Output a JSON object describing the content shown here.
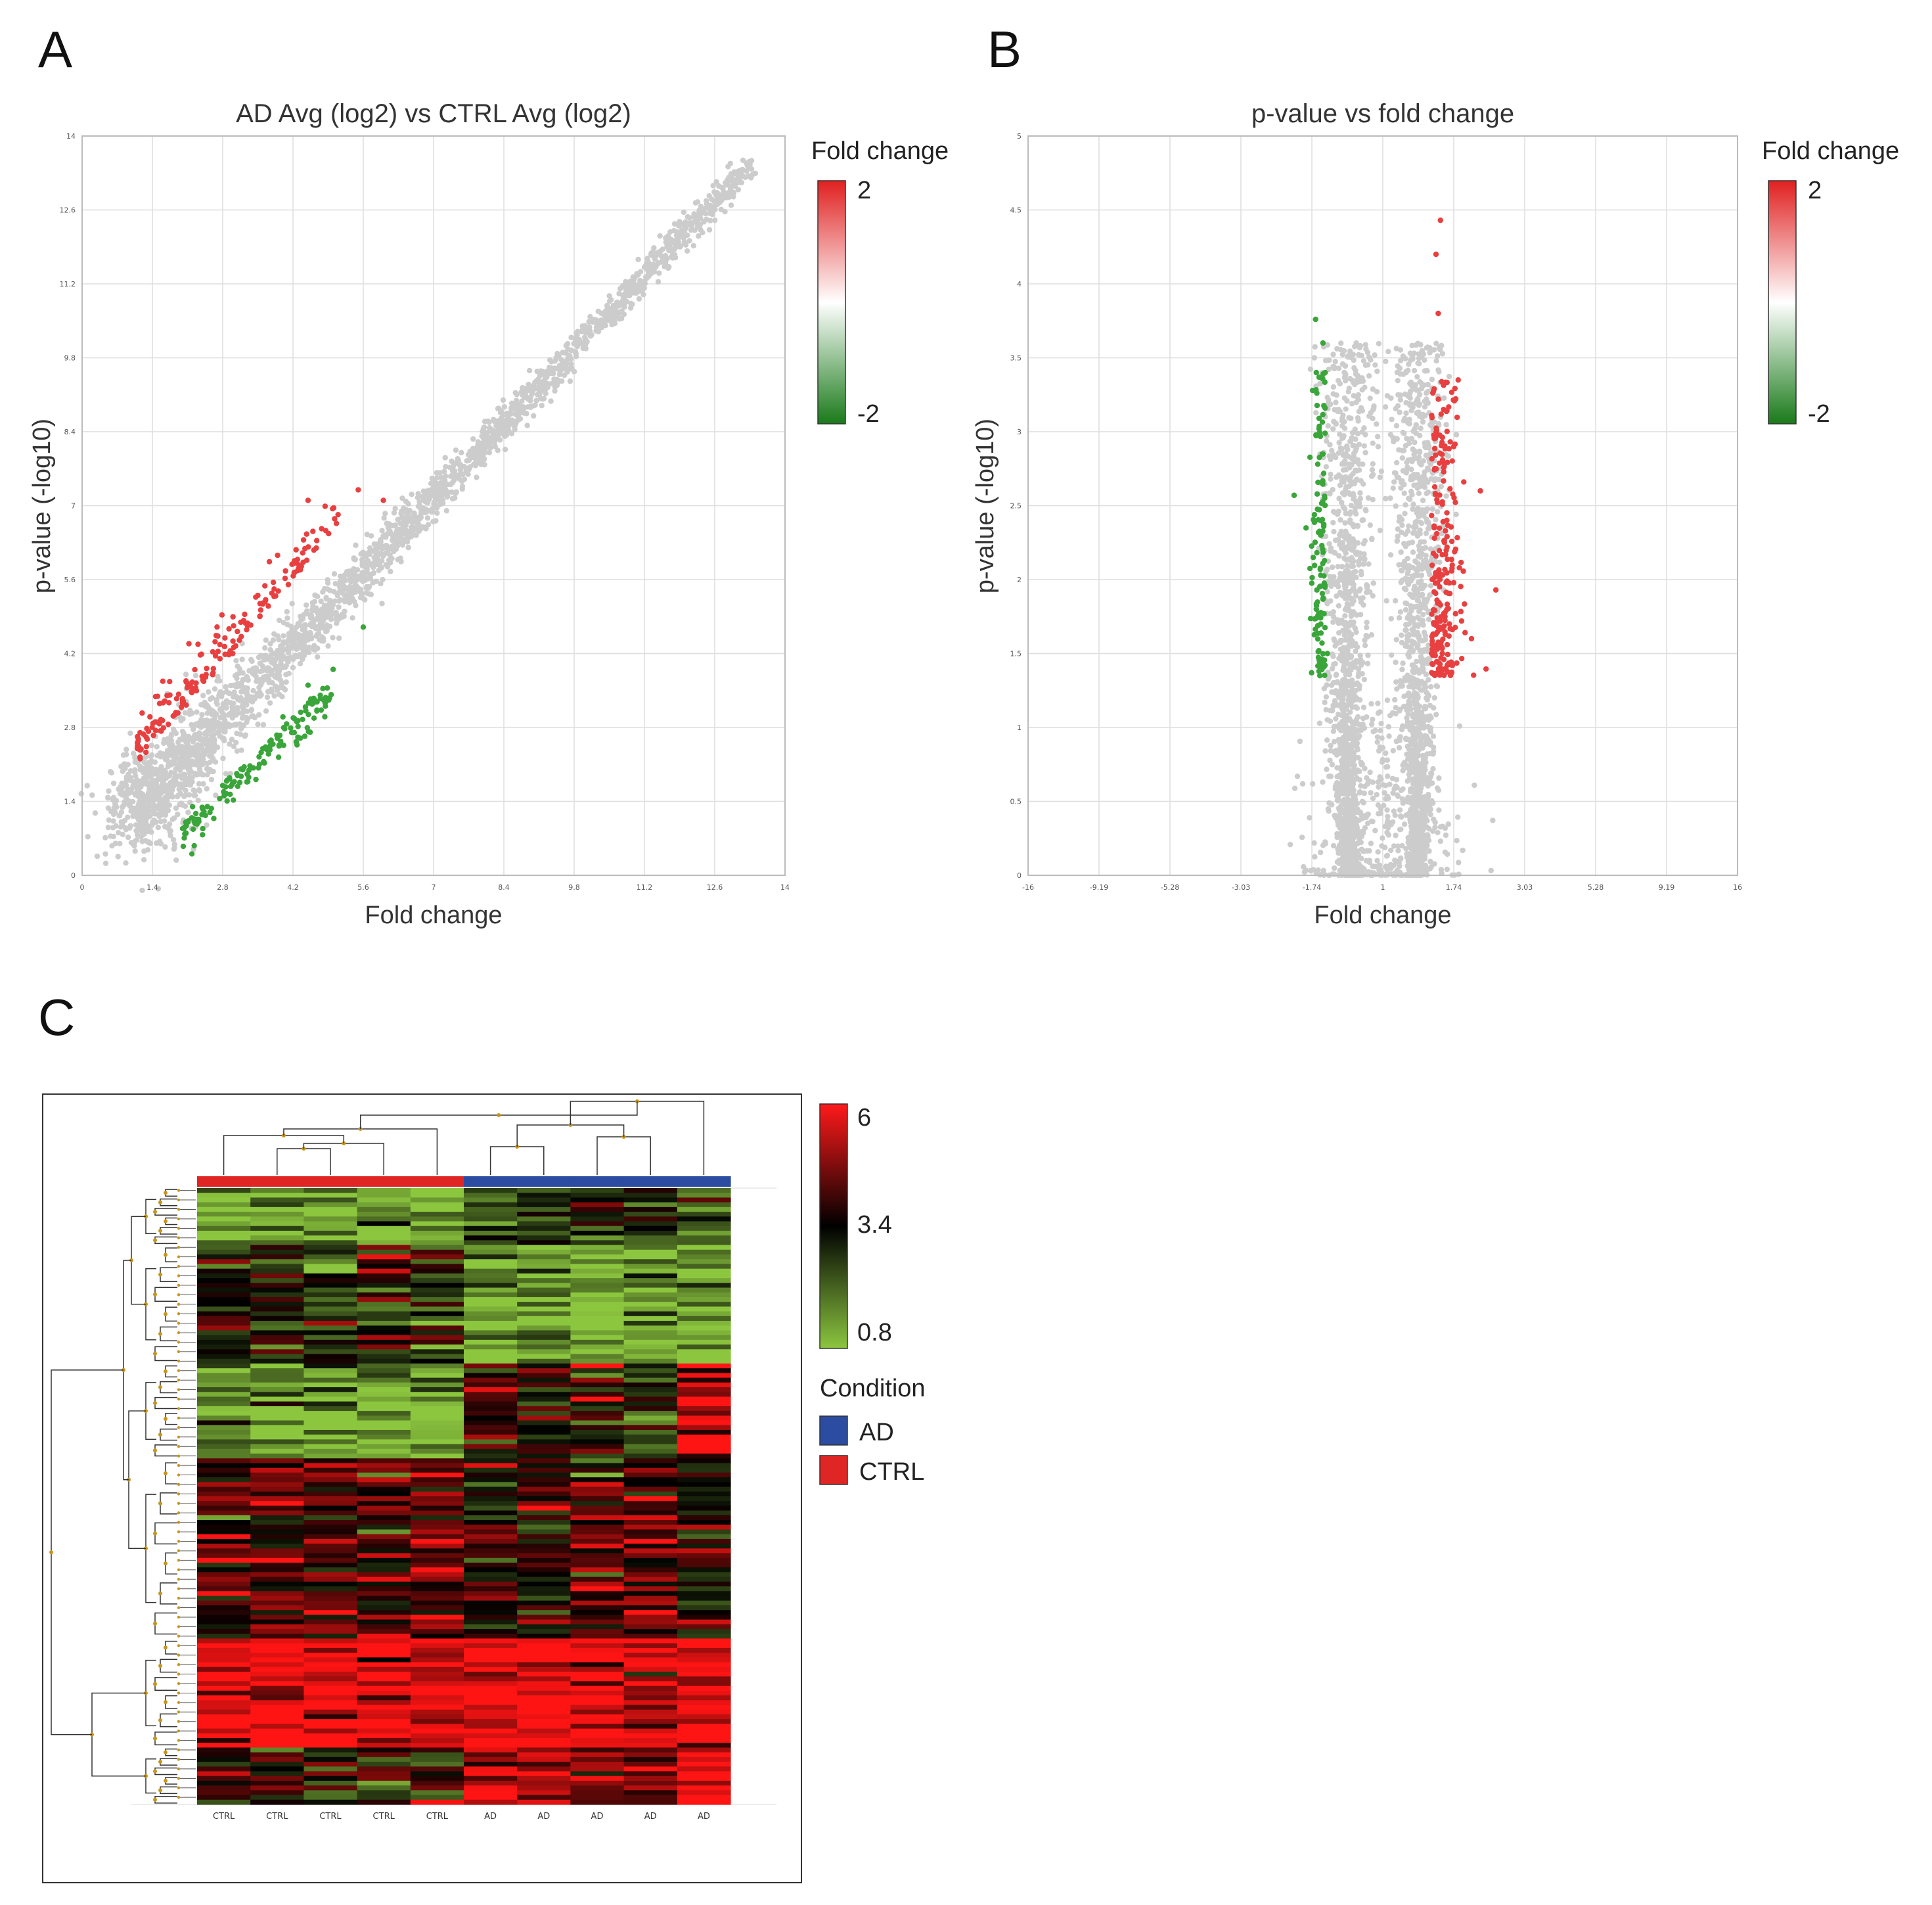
{
  "figure": {
    "panel_labels": [
      "A",
      "B",
      "C"
    ]
  },
  "colors": {
    "gray": "#cccccc",
    "up": "#e84040",
    "down": "#3aa53a",
    "grid": "#dedede",
    "ad": "#2b4ca0",
    "ctrl": "#e02525"
  },
  "chart_data": [
    {
      "type": "scatter",
      "title": "AD Avg (log2) vs CTRL Avg (log2)",
      "xlabel": "Fold change",
      "ylabel": "p-value (-log10)",
      "xlim": [
        0,
        14
      ],
      "ylim": [
        0,
        14
      ],
      "x_ticks": [
        "0",
        "1.4",
        "2.8",
        "4.2",
        "5.6",
        "7",
        "8.4",
        "9.8",
        "11.2",
        "12.6",
        "14"
      ],
      "y_ticks": [
        "0",
        "1.4",
        "2.8",
        "4.2",
        "5.6",
        "7",
        "8.4",
        "9.8",
        "11.2",
        "12.6",
        "14"
      ],
      "grid": true,
      "legend": {
        "title": "Fold change",
        "max_label": "2",
        "min_label": "-2",
        "placement": "right"
      },
      "series": [
        {
          "values_desc": "bulk",
          "points": [
            [
              1.2,
              1.4
            ],
            [
              2,
              2.2
            ],
            [
              3,
              3.1
            ],
            [
              4,
              4.1
            ],
            [
              5,
              5
            ],
            [
              6,
              6
            ],
            [
              7,
              7
            ],
            [
              8,
              8
            ],
            [
              9,
              9
            ],
            [
              10,
              10
            ],
            [
              11,
              11
            ],
            [
              12,
              12
            ],
            [
              13,
              13.2
            ],
            [
              13.3,
              13.4
            ]
          ]
        },
        {
          "values_desc": "up",
          "points": [
            [
              1.1,
              2.4
            ],
            [
              1.5,
              2.9
            ],
            [
              2,
              3.3
            ],
            [
              2.6,
              3.8
            ],
            [
              3,
              4.2
            ],
            [
              3.5,
              5.3
            ],
            [
              4.2,
              5.9
            ],
            [
              4.5,
              7.1
            ],
            [
              5.5,
              7.3
            ],
            [
              6,
              7.1
            ]
          ]
        },
        {
          "values_desc": "down",
          "points": [
            [
              2.2,
              1.3
            ],
            [
              2.8,
              1.7
            ],
            [
              3.2,
              2
            ],
            [
              3.6,
              2.4
            ],
            [
              4,
              3
            ],
            [
              4.5,
              3.6
            ],
            [
              5,
              3.9
            ],
            [
              5.6,
              4.7
            ]
          ]
        }
      ]
    },
    {
      "type": "scatter",
      "title": "p-value vs fold change",
      "xlabel": "Fold change",
      "ylabel": "p-value (-log10)",
      "xlim": [
        -16,
        16
      ],
      "ylim": [
        0,
        5
      ],
      "x_ticks": [
        "-16",
        "-9.19",
        "-5.28",
        "-3.03",
        "-1.74",
        "1",
        "1.74",
        "3.03",
        "5.28",
        "9.19",
        "16"
      ],
      "y_ticks": [
        "0",
        "0.5",
        "1",
        "1.5",
        "2",
        "2.5",
        "3",
        "3.5",
        "4",
        "4.5",
        "5"
      ],
      "grid": true,
      "legend": {
        "title": "Fold change",
        "max_label": "2",
        "min_label": "-2",
        "placement": "right"
      },
      "series": [
        {
          "values_desc": "down",
          "points": [
            [
              -3.03,
              3.76
            ],
            [
              -2.7,
              3.6
            ],
            [
              -3,
              3.4
            ],
            [
              -2.6,
              3.4
            ],
            [
              -4,
              2.57
            ],
            [
              -3,
              1.8
            ],
            [
              -2.5,
              1.5
            ],
            [
              -2.8,
              2.3
            ]
          ]
        },
        {
          "values_desc": "up",
          "points": [
            [
              2.6,
              4.43
            ],
            [
              2.4,
              4.2
            ],
            [
              2.5,
              3.8
            ],
            [
              3.4,
              3.35
            ],
            [
              3.2,
              2.9
            ],
            [
              4.4,
              2.6
            ],
            [
              5.1,
              1.93
            ],
            [
              3,
              1.7
            ],
            [
              4,
              1.6
            ],
            [
              2.2,
              1.5
            ]
          ]
        }
      ]
    },
    {
      "type": "heatmap",
      "columns": [
        "CTRL",
        "CTRL",
        "CTRL",
        "CTRL",
        "CTRL",
        "AD",
        "AD",
        "AD",
        "AD",
        "AD"
      ],
      "condition": [
        "CTRL",
        "CTRL",
        "CTRL",
        "CTRL",
        "CTRL",
        "AD",
        "AD",
        "AD",
        "AD",
        "AD"
      ],
      "color_scale": {
        "max": "6",
        "mid": "3.4",
        "min": "0.8"
      },
      "legend": {
        "title": "Condition",
        "entries": [
          {
            "label": "AD",
            "color": "#2b4ca0"
          },
          {
            "label": "CTRL",
            "color": "#e02525"
          }
        ]
      },
      "row_blocks": [
        {
          "rows": 12,
          "values": [
            1.2,
            1.3,
            1.1,
            1.6,
            1.3,
            2.5,
            2.8,
            2.9,
            3.2,
            2.2
          ]
        },
        {
          "rows": 25,
          "values": [
            3.2,
            3.4,
            3.0,
            3.3,
            2.9,
            1.2,
            1.1,
            1.0,
            1.2,
            1.1
          ]
        },
        {
          "rows": 20,
          "values": [
            1.6,
            1.4,
            1.4,
            1.4,
            1.5,
            3.6,
            3.8,
            3.2,
            3.0,
            5.2
          ]
        },
        {
          "rows": 38,
          "values": [
            4.2,
            4.4,
            4.0,
            4.0,
            4.3,
            3.6,
            4.0,
            3.9,
            4.3,
            3.6
          ]
        },
        {
          "rows": 23,
          "values": [
            5.8,
            5.9,
            5.8,
            5.9,
            5.6,
            6.0,
            6.0,
            5.9,
            5.5,
            6.0
          ]
        },
        {
          "rows": 12,
          "values": [
            3.6,
            3.7,
            3.4,
            3.6,
            3.8,
            5.2,
            5.0,
            5.0,
            4.8,
            6.0
          ]
        }
      ]
    }
  ]
}
